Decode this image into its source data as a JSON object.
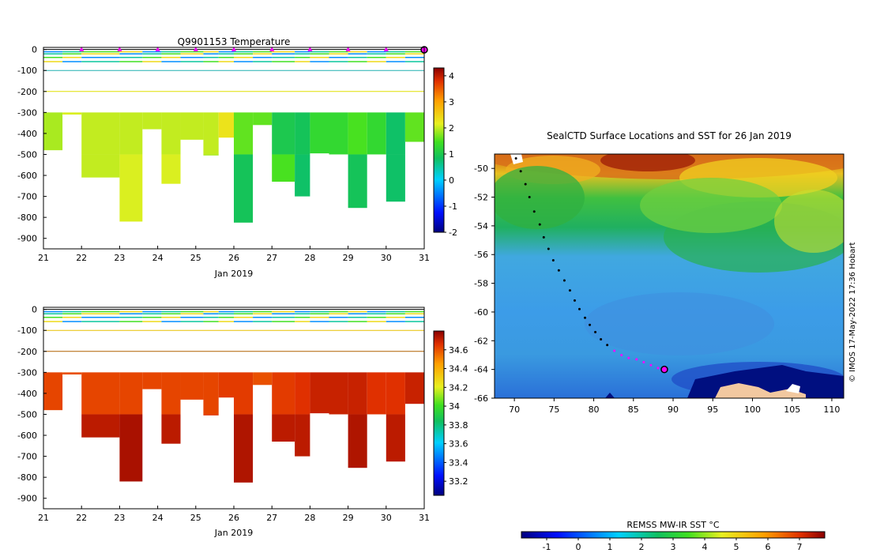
{
  "chart_data": [
    {
      "type": "heatmap",
      "title": "Q9901153  Temperature",
      "xlabel": "Jan 2019",
      "x_ticks": [
        "21",
        "22",
        "23",
        "24",
        "25",
        "26",
        "27",
        "28",
        "29",
        "30",
        "31"
      ],
      "y_ticks": [
        "0",
        "-100",
        "-200",
        "-300",
        "-400",
        "-500",
        "-600",
        "-700",
        "-800",
        "-900"
      ],
      "xlim": [
        21,
        31
      ],
      "ylim": [
        -950,
        10
      ],
      "colorbar": {
        "min": -2,
        "max": 4.3,
        "ticks": [
          "-2",
          "-1",
          "0",
          "1",
          "2",
          "3",
          "4"
        ]
      },
      "surface_markers_x": [
        22,
        23,
        24,
        25,
        26,
        27,
        28,
        29,
        30
      ],
      "profiles": [
        {
          "x": 21.0,
          "bottom": -480,
          "top_color_value": 1.9,
          "deep_value": 2.0
        },
        {
          "x": 21.5,
          "bottom": -310,
          "top_color_value": 2.1,
          "deep_value": 2.1
        },
        {
          "x": 22.0,
          "bottom": -610,
          "top_color_value": 2.0,
          "deep_value": 2.0
        },
        {
          "x": 23.0,
          "bottom": -820,
          "top_color_value": 2.0,
          "deep_value": 2.1
        },
        {
          "x": 23.6,
          "bottom": -380,
          "top_color_value": 2.0,
          "deep_value": 2.0
        },
        {
          "x": 24.1,
          "bottom": -640,
          "top_color_value": 2.0,
          "deep_value": 2.1
        },
        {
          "x": 24.6,
          "bottom": -430,
          "top_color_value": 2.0,
          "deep_value": 2.0
        },
        {
          "x": 25.2,
          "bottom": -505,
          "top_color_value": 2.0,
          "deep_value": 1.9
        },
        {
          "x": 25.6,
          "bottom": -420,
          "top_color_value": 2.3,
          "deep_value": 2.0
        },
        {
          "x": 26.0,
          "bottom": -825,
          "top_color_value": 1.6,
          "deep_value": 0.9
        },
        {
          "x": 26.5,
          "bottom": -360,
          "top_color_value": 1.6,
          "deep_value": 1.4
        },
        {
          "x": 27.0,
          "bottom": -630,
          "top_color_value": 1.0,
          "deep_value": 1.5
        },
        {
          "x": 27.6,
          "bottom": -700,
          "top_color_value": 0.9,
          "deep_value": 0.8
        },
        {
          "x": 28.0,
          "bottom": -495,
          "top_color_value": 1.3,
          "deep_value": 1.3
        },
        {
          "x": 28.5,
          "bottom": -500,
          "top_color_value": 1.3,
          "deep_value": 1.3
        },
        {
          "x": 29.0,
          "bottom": -755,
          "top_color_value": 1.5,
          "deep_value": 0.9
        },
        {
          "x": 29.5,
          "bottom": -500,
          "top_color_value": 1.3,
          "deep_value": 1.3
        },
        {
          "x": 30.0,
          "bottom": -725,
          "top_color_value": 0.8,
          "deep_value": 0.8
        },
        {
          "x": 30.5,
          "bottom": -440,
          "top_color_value": 1.6,
          "deep_value": 1.5
        }
      ]
    },
    {
      "type": "heatmap",
      "title": "",
      "xlabel": "Jan 2019",
      "x_ticks": [
        "21",
        "22",
        "23",
        "24",
        "25",
        "26",
        "27",
        "28",
        "29",
        "30",
        "31"
      ],
      "y_ticks": [
        "0",
        "-100",
        "-200",
        "-300",
        "-400",
        "-500",
        "-600",
        "-700",
        "-800",
        "-900"
      ],
      "xlim": [
        21,
        31
      ],
      "ylim": [
        -950,
        10
      ],
      "colorbar": {
        "min": 33.05,
        "max": 34.8,
        "ticks": [
          "33.2",
          "33.4",
          "33.6",
          "33.8",
          "34",
          "34.2",
          "34.4",
          "34.6"
        ]
      },
      "profiles": [
        {
          "x": 21.0,
          "bottom": -480,
          "top_color_value": 34.62,
          "deep_value": 34.7
        },
        {
          "x": 21.5,
          "bottom": -310,
          "top_color_value": 34.6,
          "deep_value": 34.65
        },
        {
          "x": 22.0,
          "bottom": -610,
          "top_color_value": 34.62,
          "deep_value": 34.72
        },
        {
          "x": 23.0,
          "bottom": -820,
          "top_color_value": 34.62,
          "deep_value": 34.75
        },
        {
          "x": 23.6,
          "bottom": -380,
          "top_color_value": 34.62,
          "deep_value": 34.68
        },
        {
          "x": 24.1,
          "bottom": -640,
          "top_color_value": 34.62,
          "deep_value": 34.72
        },
        {
          "x": 24.6,
          "bottom": -430,
          "top_color_value": 34.62,
          "deep_value": 34.66
        },
        {
          "x": 25.2,
          "bottom": -505,
          "top_color_value": 34.62,
          "deep_value": 34.66
        },
        {
          "x": 25.6,
          "bottom": -420,
          "top_color_value": 34.64,
          "deep_value": 34.66
        },
        {
          "x": 26.0,
          "bottom": -825,
          "top_color_value": 34.64,
          "deep_value": 34.74
        },
        {
          "x": 26.5,
          "bottom": -360,
          "top_color_value": 34.6,
          "deep_value": 34.64
        },
        {
          "x": 27.0,
          "bottom": -630,
          "top_color_value": 34.64,
          "deep_value": 34.72
        },
        {
          "x": 27.6,
          "bottom": -700,
          "top_color_value": 34.66,
          "deep_value": 34.72
        },
        {
          "x": 28.0,
          "bottom": -495,
          "top_color_value": 34.7,
          "deep_value": 34.72
        },
        {
          "x": 28.5,
          "bottom": -500,
          "top_color_value": 34.7,
          "deep_value": 34.72
        },
        {
          "x": 29.0,
          "bottom": -755,
          "top_color_value": 34.7,
          "deep_value": 34.74
        },
        {
          "x": 29.5,
          "bottom": -500,
          "top_color_value": 34.66,
          "deep_value": 34.7
        },
        {
          "x": 30.0,
          "bottom": -725,
          "top_color_value": 34.66,
          "deep_value": 34.72
        },
        {
          "x": 30.5,
          "bottom": -450,
          "top_color_value": 34.7,
          "deep_value": 34.72
        }
      ]
    },
    {
      "type": "heatmap",
      "title": "SealCTD Surface Locations and SST for 26 Jan 2019",
      "x_ticks": [
        "70",
        "75",
        "80",
        "85",
        "90",
        "95",
        "100",
        "105",
        "110"
      ],
      "y_ticks": [
        "-50",
        "-52",
        "-54",
        "-56",
        "-58",
        "-60",
        "-62",
        "-64",
        "-66"
      ],
      "xlim": [
        67.5,
        111.5
      ],
      "ylim": [
        -66,
        -49
      ],
      "side_label": "© IMOS 17-May-2022 17:36 Hobart",
      "track": [
        [
          70.2,
          -49.3
        ],
        [
          70.8,
          -50.2
        ],
        [
          71.4,
          -51.1
        ],
        [
          71.9,
          -52.0
        ],
        [
          72.5,
          -53.0
        ],
        [
          73.2,
          -53.9
        ],
        [
          73.7,
          -54.8
        ],
        [
          74.3,
          -55.6
        ],
        [
          74.9,
          -56.4
        ],
        [
          75.6,
          -57.1
        ],
        [
          76.3,
          -57.8
        ],
        [
          77.0,
          -58.5
        ],
        [
          77.6,
          -59.2
        ],
        [
          78.2,
          -59.8
        ],
        [
          78.9,
          -60.4
        ],
        [
          79.5,
          -60.9
        ],
        [
          80.2,
          -61.4
        ],
        [
          80.9,
          -61.9
        ],
        [
          81.7,
          -62.3
        ],
        [
          82.6,
          -62.7
        ],
        [
          83.5,
          -63.0
        ],
        [
          84.4,
          -63.2
        ],
        [
          85.4,
          -63.3
        ],
        [
          86.3,
          -63.5
        ],
        [
          87.2,
          -63.7
        ],
        [
          88.1,
          -63.9
        ]
      ],
      "track_magenta_from_index": 19,
      "current_position": [
        88.9,
        -64.0
      ],
      "colorbar": {
        "label": "REMSS MW-IR SST °C",
        "min": -1.8,
        "max": 7.8,
        "ticks": [
          "-1",
          "0",
          "1",
          "2",
          "3",
          "4",
          "5",
          "6",
          "7"
        ]
      }
    }
  ]
}
